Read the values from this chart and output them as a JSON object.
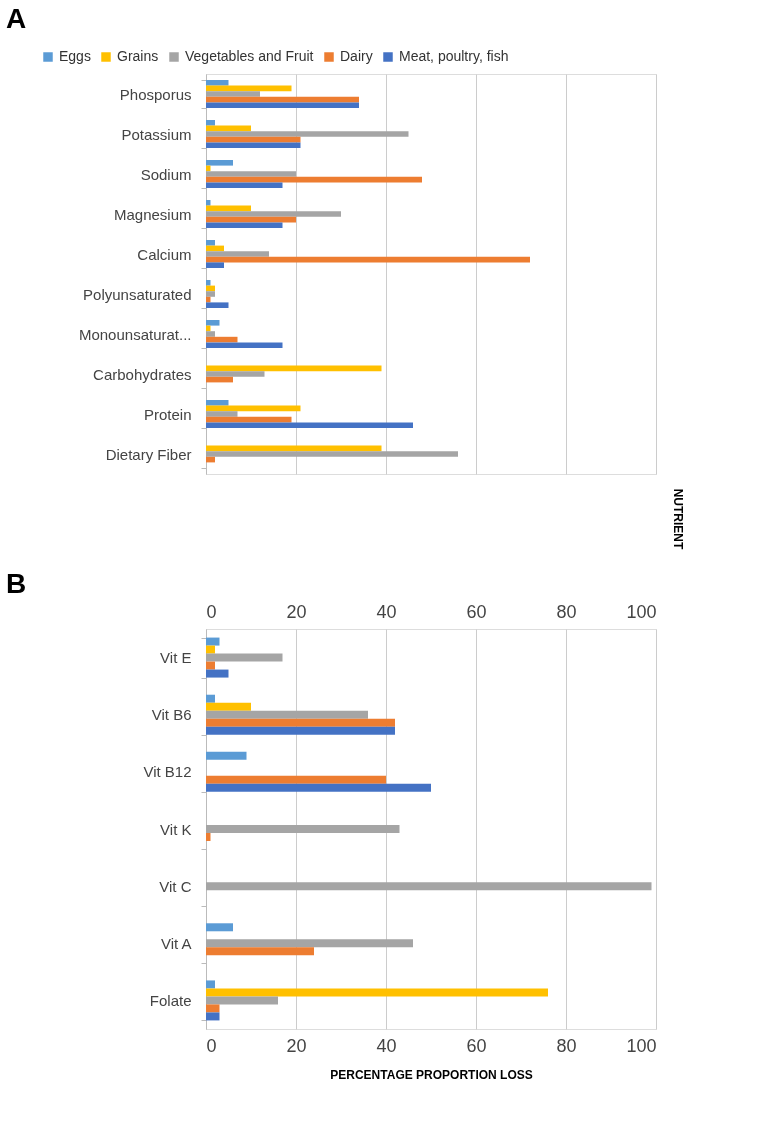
{
  "chart_data": [
    {
      "type": "bar",
      "title": "A",
      "orientation": "horizontal",
      "ylabel": "NUTRIENT",
      "legend": "top",
      "grid": "x",
      "tick_labels": "y",
      "xlim": [
        0,
        100
      ],
      "xticks": [
        0,
        20,
        40,
        60,
        80,
        100
      ],
      "categories": [
        "Phosporus",
        "Potassium",
        "Sodium",
        "Magnesium",
        "Calcium",
        "Polyunsaturated",
        "Monounsaturat...",
        "Carbohydrates",
        "Protein",
        "Dietary Fiber"
      ],
      "series": [
        {
          "name": "Eggs",
          "color": "#5b9bd5",
          "values": [
            5,
            2,
            6,
            1,
            2,
            1,
            3,
            null,
            5,
            null
          ]
        },
        {
          "name": "Grains",
          "color": "#ffc000",
          "values": [
            19,
            10,
            1,
            10,
            4,
            2,
            1,
            39,
            21,
            39
          ]
        },
        {
          "name": "Vegetables and Fruit",
          "color": "#a5a5a5",
          "values": [
            12,
            45,
            20,
            30,
            14,
            2,
            2,
            13,
            7,
            56
          ]
        },
        {
          "name": "Dairy",
          "color": "#ed7d31",
          "values": [
            34,
            21,
            48,
            20,
            72,
            1,
            7,
            6,
            19,
            2
          ]
        },
        {
          "name": "Meat, poultry, fish",
          "color": "#4472c4",
          "values": [
            34,
            21,
            17,
            17,
            4,
            5,
            17,
            null,
            46,
            null
          ]
        }
      ]
    },
    {
      "type": "bar",
      "title": "B",
      "orientation": "horizontal",
      "xlabel": "PERCENTAGE PROPORTION LOSS",
      "legend": false,
      "grid": "x",
      "xlim": [
        0,
        100
      ],
      "xticks": [
        0,
        20,
        40,
        60,
        80,
        100
      ],
      "x2lim": [
        0,
        100
      ],
      "x2ticks": [
        0,
        20,
        40,
        60,
        80,
        100
      ],
      "categories": [
        "Vit E",
        "Vit B6",
        "Vit B12",
        "Vit K",
        "Vit C",
        "Vit A",
        "Folate"
      ],
      "series": [
        {
          "color": "#5b9bd5",
          "values": [
            3,
            2,
            9,
            null,
            null,
            6,
            2
          ]
        },
        {
          "color": "#ffc000",
          "values": [
            2,
            10,
            null,
            null,
            null,
            null,
            76
          ]
        },
        {
          "color": "#a5a5a5",
          "values": [
            17,
            36,
            null,
            43,
            99,
            46,
            16
          ]
        },
        {
          "color": "#ed7d31",
          "values": [
            2,
            42,
            40,
            1,
            null,
            24,
            3
          ]
        },
        {
          "color": "#4472c4",
          "values": [
            5,
            42,
            50,
            null,
            null,
            null,
            3
          ]
        }
      ]
    }
  ]
}
